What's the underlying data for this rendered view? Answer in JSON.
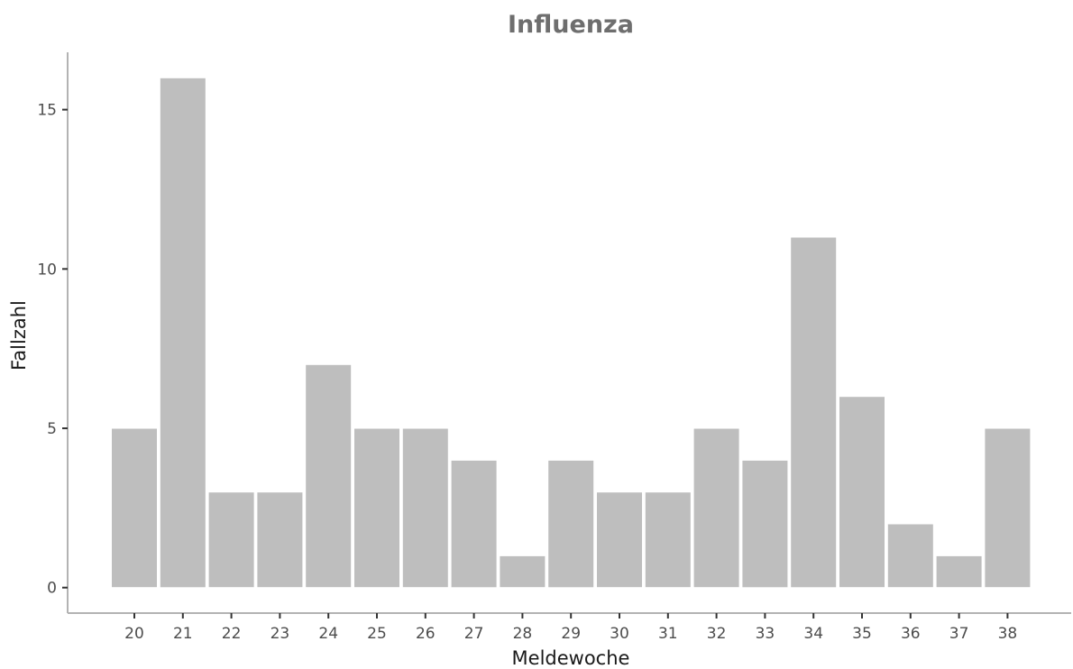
{
  "chart_data": {
    "type": "bar",
    "title": "Influenza",
    "xlabel": "Meldewoche",
    "ylabel": "Fallzahl",
    "categories": [
      "20",
      "21",
      "22",
      "23",
      "24",
      "25",
      "26",
      "27",
      "28",
      "29",
      "30",
      "31",
      "32",
      "33",
      "34",
      "35",
      "36",
      "37",
      "38"
    ],
    "values": [
      5,
      16,
      3,
      3,
      7,
      5,
      5,
      4,
      1,
      4,
      3,
      3,
      5,
      4,
      11,
      6,
      2,
      1,
      5
    ],
    "yticks": [
      0,
      5,
      10,
      15
    ],
    "ylim": [
      -0.8,
      16.8
    ],
    "grid": false,
    "legend": "none",
    "bar_color": "#bebebe",
    "bar_edge_color": "#ffffff",
    "axis_color": "#b3b3b3",
    "title_color": "#6e6e6e"
  }
}
